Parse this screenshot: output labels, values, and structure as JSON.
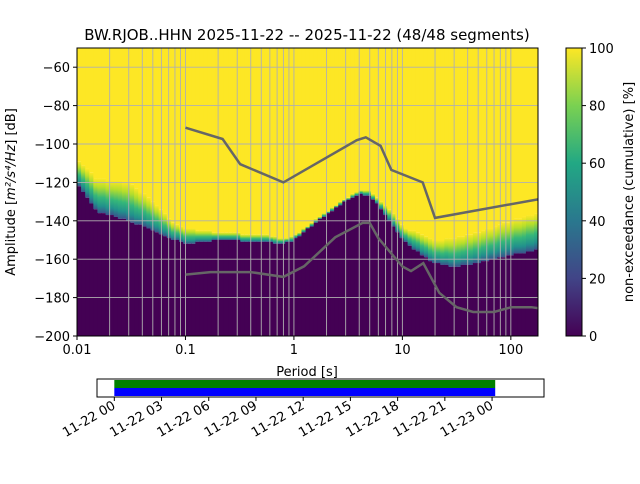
{
  "chart_data": {
    "type": "heatmap",
    "title": "BW.RJOB..HHN   2025-11-22 -- 2025-11-22  (48/48 segments)",
    "xlabel": "Period [s]",
    "ylabel_prefix": "Amplitude [",
    "ylabel_unit": "m²/s⁴/Hz",
    "ylabel_suffix": "] [dB]",
    "xscale": "log",
    "xlim": [
      0.01,
      178
    ],
    "ylim": [
      -200,
      -50
    ],
    "grid": true,
    "x_ticks": [
      {
        "v": 0.01,
        "label": "0.01"
      },
      {
        "v": 0.1,
        "label": "0.1"
      },
      {
        "v": 1,
        "label": "1"
      },
      {
        "v": 10,
        "label": "10"
      },
      {
        "v": 100,
        "label": "100"
      }
    ],
    "y_ticks": [
      {
        "v": -60,
        "label": "−60"
      },
      {
        "v": -80,
        "label": "−80"
      },
      {
        "v": -100,
        "label": "−100"
      },
      {
        "v": -120,
        "label": "−120"
      },
      {
        "v": -140,
        "label": "−140"
      },
      {
        "v": -160,
        "label": "−160"
      },
      {
        "v": -180,
        "label": "−180"
      },
      {
        "v": -200,
        "label": "−200"
      }
    ],
    "psd_lower_edge": [
      [
        0.01,
        -120
      ],
      [
        0.015,
        -135
      ],
      [
        0.03,
        -140
      ],
      [
        0.05,
        -145
      ],
      [
        0.08,
        -150
      ],
      [
        0.1,
        -152
      ],
      [
        0.2,
        -150
      ],
      [
        0.5,
        -151
      ],
      [
        0.8,
        -152
      ],
      [
        1,
        -150
      ],
      [
        1.5,
        -142
      ],
      [
        2,
        -137
      ],
      [
        3,
        -130
      ],
      [
        4,
        -126
      ],
      [
        5,
        -127
      ],
      [
        6,
        -132
      ],
      [
        8,
        -142
      ],
      [
        10,
        -150
      ],
      [
        15,
        -158
      ],
      [
        20,
        -162
      ],
      [
        30,
        -164
      ],
      [
        50,
        -162
      ],
      [
        100,
        -158
      ],
      [
        178,
        -155
      ]
    ],
    "psd_upper_edge": [
      [
        0.01,
        -108
      ],
      [
        0.015,
        -118
      ],
      [
        0.03,
        -120
      ],
      [
        0.05,
        -130
      ],
      [
        0.08,
        -142
      ],
      [
        0.1,
        -144
      ],
      [
        0.2,
        -146
      ],
      [
        0.5,
        -147
      ],
      [
        0.8,
        -149
      ],
      [
        1,
        -148
      ],
      [
        2,
        -135
      ],
      [
        4,
        -124
      ],
      [
        5,
        -124
      ],
      [
        8,
        -135
      ],
      [
        10,
        -143
      ],
      [
        20,
        -150
      ],
      [
        30,
        -149
      ],
      [
        50,
        -146
      ],
      [
        100,
        -140
      ],
      [
        178,
        -136
      ]
    ],
    "nhnm": [
      [
        0.1,
        -91.5
      ],
      [
        0.22,
        -97.4
      ],
      [
        0.32,
        -110.5
      ],
      [
        0.8,
        -120
      ],
      [
        3.8,
        -98
      ],
      [
        4.6,
        -96.5
      ],
      [
        6.3,
        -101
      ],
      [
        7.9,
        -113.5
      ],
      [
        15.4,
        -120
      ],
      [
        20,
        -138.5
      ],
      [
        178,
        -128.8
      ]
    ],
    "nlnm": [
      [
        0.1,
        -168
      ],
      [
        0.17,
        -166.7
      ],
      [
        0.4,
        -166.7
      ],
      [
        0.8,
        -169.2
      ],
      [
        1.24,
        -163.7
      ],
      [
        2.4,
        -148.6
      ],
      [
        4.3,
        -141.1
      ],
      [
        5,
        -141.1
      ],
      [
        6,
        -149
      ],
      [
        10,
        -163.8
      ],
      [
        12,
        -166.2
      ],
      [
        15.6,
        -162.1
      ],
      [
        21.9,
        -177.5
      ],
      [
        31.6,
        -185
      ],
      [
        45,
        -187.5
      ],
      [
        70,
        -187.5
      ],
      [
        101,
        -185
      ],
      [
        154,
        -185
      ],
      [
        178,
        -185.5
      ]
    ],
    "colorbar": {
      "label": "non-exceedance (cumulative) [%]",
      "range": [
        0,
        100
      ],
      "ticks": [
        "0",
        "20",
        "40",
        "60",
        "80",
        "100"
      ]
    },
    "timeline": {
      "ticks": [
        "11-22 00",
        "11-22 03",
        "11-22 06",
        "11-22 09",
        "11-22 12",
        "11-22 15",
        "11-22 18",
        "11-22 21",
        "11-23 00"
      ],
      "coverage_start_hours": 0,
      "coverage_end_hours": 24.2,
      "range_hours": [
        -1.1,
        27.3
      ]
    },
    "colors": {
      "low": "#440154",
      "high": "#fde725",
      "noise_model": "#666666",
      "coverage_top": "#008000",
      "coverage_bottom": "#0000ff"
    }
  }
}
